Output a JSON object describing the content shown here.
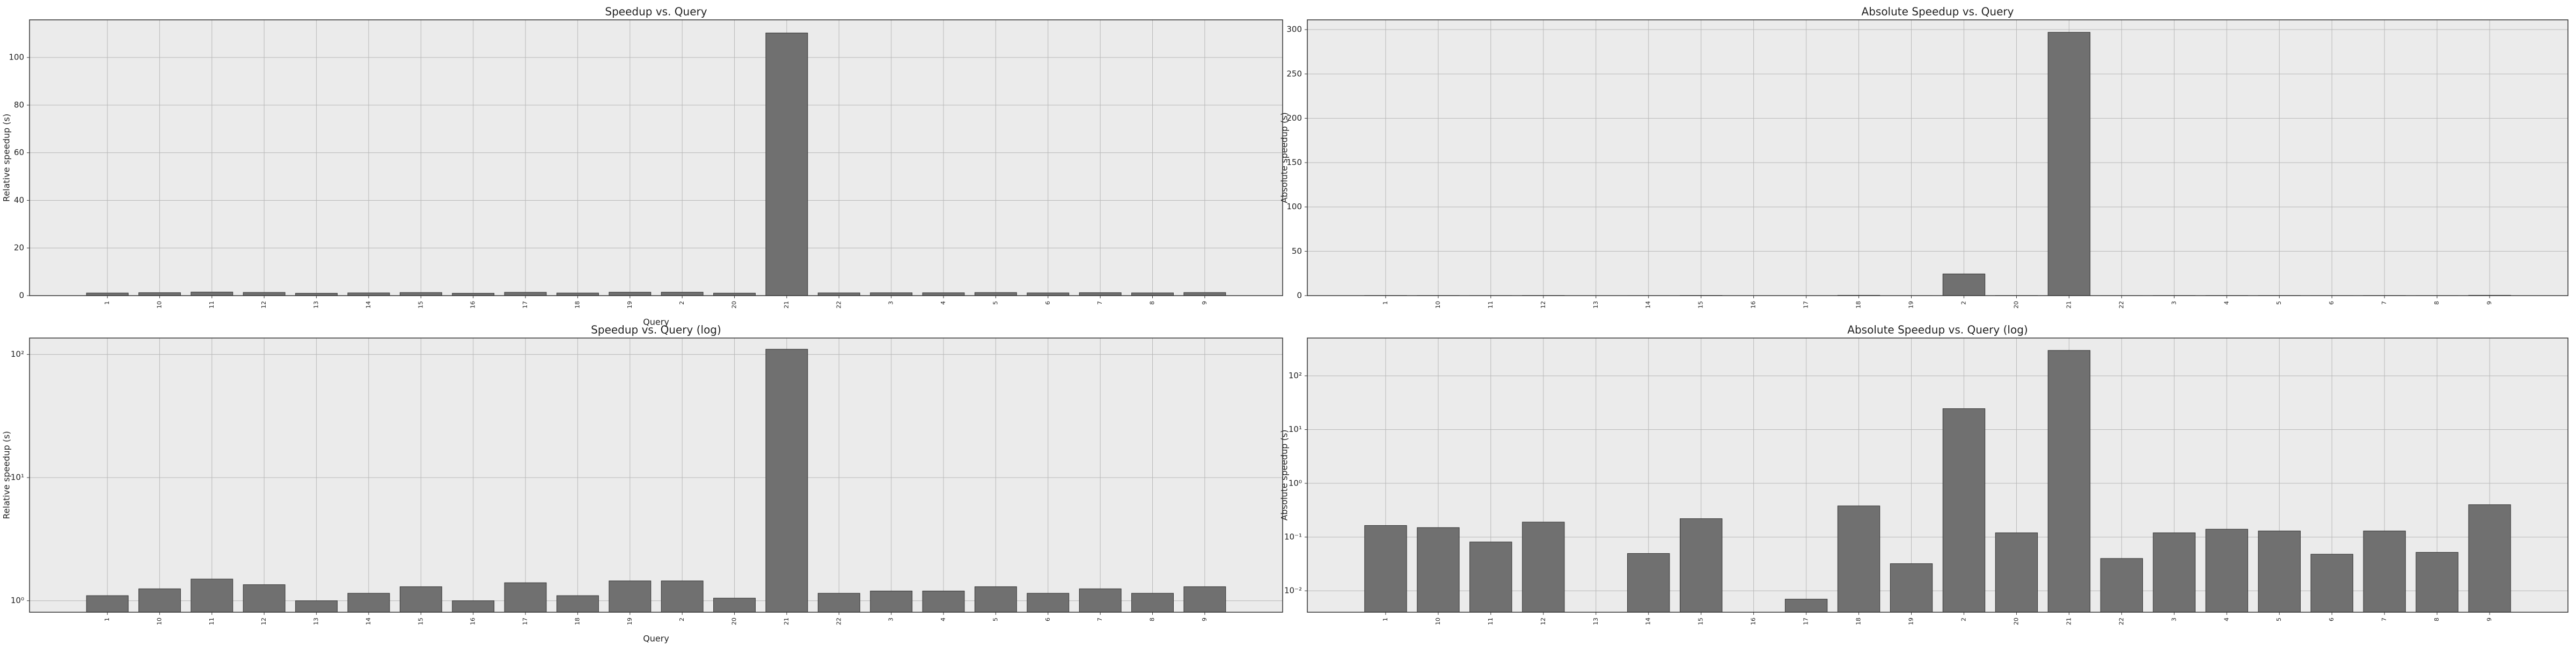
{
  "chart_data": [
    {
      "type": "bar",
      "title": "Speedup vs. Query",
      "xlabel": "Query",
      "ylabel": "Relative speedup (s)",
      "categories": [
        "1",
        "10",
        "11",
        "12",
        "13",
        "14",
        "15",
        "16",
        "17",
        "18",
        "19",
        "2",
        "20",
        "21",
        "22",
        "3",
        "4",
        "5",
        "6",
        "7",
        "8",
        "9"
      ],
      "values": [
        1.1,
        1.25,
        1.5,
        1.35,
        1.0,
        1.15,
        1.3,
        1.0,
        1.4,
        1.1,
        1.45,
        1.45,
        1.05,
        110.3,
        1.15,
        1.2,
        1.2,
        1.3,
        1.15,
        1.25,
        1.15,
        1.3
      ],
      "color": "#707070",
      "ylim": [
        0,
        115.8
      ],
      "yticks": [
        0,
        20,
        40,
        60,
        80,
        100
      ],
      "log": false,
      "grid": true
    },
    {
      "type": "bar",
      "title": "Absolute Speedup vs. Query",
      "ylabel": "Absolute speedup (s)",
      "categories": [
        "1",
        "10",
        "11",
        "12",
        "13",
        "14",
        "15",
        "16",
        "17",
        "18",
        "19",
        "2",
        "20",
        "21",
        "22",
        "3",
        "4",
        "5",
        "6",
        "7",
        "8",
        "9"
      ],
      "values": [
        0.164,
        0.15,
        0.081,
        0.19,
        0,
        0.0495,
        0.22,
        0,
        0.007,
        0.38,
        0.032,
        24.5,
        0.12,
        297,
        0.04,
        0.12,
        0.14,
        0.13,
        0.048,
        0.13,
        0.052,
        0.4
      ],
      "color": "#707070",
      "ylim": [
        0,
        311
      ],
      "yticks": [
        0,
        50,
        100,
        150,
        200,
        250,
        300
      ],
      "log": false,
      "grid": true
    },
    {
      "type": "bar",
      "title": "Speedup vs. Query (log)",
      "xlabel": "Query",
      "ylabel": "Relative speedup (s)",
      "categories": [
        "1",
        "10",
        "11",
        "12",
        "13",
        "14",
        "15",
        "16",
        "17",
        "18",
        "19",
        "2",
        "20",
        "21",
        "22",
        "3",
        "4",
        "5",
        "6",
        "7",
        "8",
        "9"
      ],
      "values": [
        1.1,
        1.25,
        1.5,
        1.35,
        1.0,
        1.15,
        1.3,
        1.0,
        1.4,
        1.1,
        1.45,
        1.45,
        1.05,
        110.3,
        1.15,
        1.2,
        1.2,
        1.3,
        1.15,
        1.25,
        1.15,
        1.3
      ],
      "color": "#707070",
      "ylim": [
        0.807,
        136
      ],
      "yticks": [
        {
          "value": 1,
          "label": "10⁰"
        },
        {
          "value": 10,
          "label": "10¹"
        },
        {
          "value": 100,
          "label": "10²"
        }
      ],
      "log": true,
      "grid": true
    },
    {
      "type": "bar",
      "title": "Absolute Speedup vs. Query (log)",
      "ylabel": "Absolute speedup (s)",
      "categories": [
        "1",
        "10",
        "11",
        "12",
        "13",
        "14",
        "15",
        "16",
        "17",
        "18",
        "19",
        "2",
        "20",
        "21",
        "22",
        "3",
        "4",
        "5",
        "6",
        "7",
        "8",
        "9"
      ],
      "values": [
        0.164,
        0.15,
        0.081,
        0.19,
        0,
        0.0495,
        0.22,
        0,
        0.007,
        0.38,
        0.032,
        24.5,
        0.12,
        297,
        0.04,
        0.12,
        0.14,
        0.13,
        0.048,
        0.13,
        0.052,
        0.4
      ],
      "color": "#707070",
      "ylim": [
        0.004,
        505
      ],
      "yticks": [
        {
          "value": 0.01,
          "label": "10⁻²"
        },
        {
          "value": 0.1,
          "label": "10⁻¹"
        },
        {
          "value": 1,
          "label": "10⁰"
        },
        {
          "value": 10,
          "label": "10¹"
        },
        {
          "value": 100,
          "label": "10²"
        }
      ],
      "log": true,
      "grid": true
    }
  ]
}
